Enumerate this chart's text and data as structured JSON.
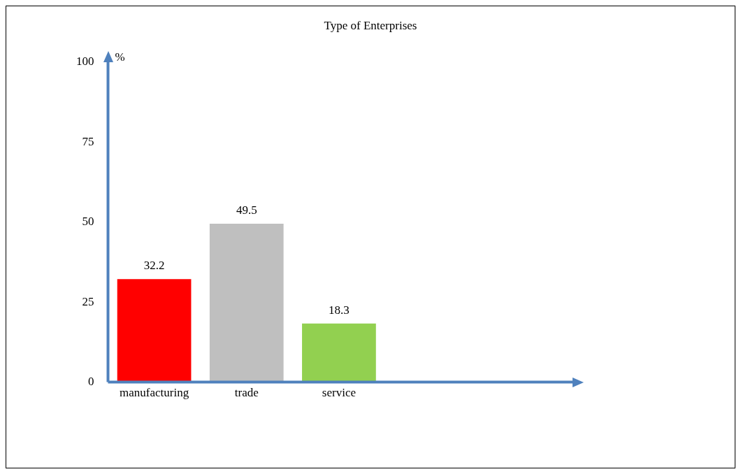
{
  "chart_data": {
    "type": "bar",
    "title": "Type of Enterprises",
    "ylabel": "%",
    "categories": [
      "manufacturing",
      "trade",
      "service"
    ],
    "values": [
      32.2,
      49.5,
      18.3
    ],
    "colors": [
      "#ff0000",
      "#bfbfbf",
      "#92d050"
    ],
    "ylim": [
      0,
      100
    ],
    "yticks": [
      0,
      25,
      50,
      75,
      100
    ],
    "grid": false,
    "legend": false,
    "data_labels": true
  }
}
